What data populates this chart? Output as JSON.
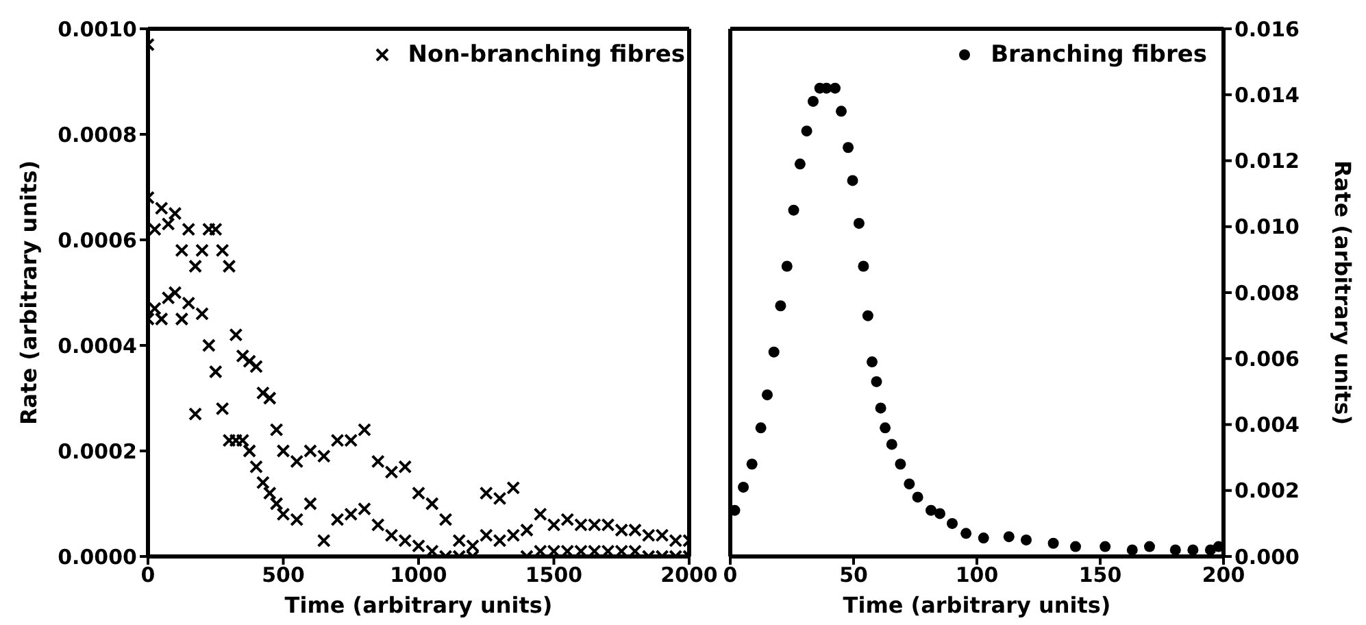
{
  "chart_data": [
    {
      "type": "scatter",
      "xlabel": "Time (arbitrary units)",
      "ylabel": "Rate (arbitrary units)",
      "xlim": [
        0,
        2000
      ],
      "xticks": [
        0,
        500,
        1000,
        1500,
        2000
      ],
      "ylim": [
        0,
        0.001
      ],
      "yticks": [
        {
          "value": 0,
          "label": "0.0000"
        },
        {
          "value": 0.0002,
          "label": "0.0002"
        },
        {
          "value": 0.0004,
          "label": "0.0004"
        },
        {
          "value": 0.0006,
          "label": "0.0006"
        },
        {
          "value": 0.0008,
          "label": "0.0008"
        },
        {
          "value": 0.001,
          "label": "0.0010"
        }
      ],
      "marker": "cross",
      "legend": "top right",
      "grid": false,
      "series": [
        {
          "name": "Non-branching fibres",
          "color": "#000000",
          "x": [
            0,
            0,
            0,
            25,
            25,
            50,
            50,
            75,
            75,
            100,
            100,
            125,
            125,
            150,
            150,
            175,
            175,
            200,
            200,
            225,
            225,
            250,
            250,
            275,
            275,
            300,
            300,
            325,
            325,
            350,
            350,
            375,
            375,
            400,
            400,
            425,
            425,
            450,
            450,
            475,
            475,
            500,
            500,
            550,
            550,
            600,
            600,
            650,
            650,
            700,
            700,
            750,
            750,
            800,
            800,
            850,
            850,
            900,
            900,
            950,
            950,
            1000,
            1000,
            1050,
            1050,
            1100,
            1100,
            1150,
            1150,
            1200,
            1200,
            1250,
            1250,
            1300,
            1300,
            1350,
            1350,
            1400,
            1400,
            1450,
            1450,
            1500,
            1500,
            1550,
            1550,
            1600,
            1600,
            1650,
            1650,
            1700,
            1700,
            1750,
            1750,
            1800,
            1800,
            1850,
            1850,
            1900,
            1900,
            1950,
            1950,
            2000,
            2000
          ],
          "values": [
            0.00097,
            0.00068,
            0.00045,
            0.00062,
            0.00047,
            0.00066,
            0.00045,
            0.00063,
            0.00049,
            0.00065,
            0.0005,
            0.00058,
            0.00045,
            0.00062,
            0.00048,
            0.00055,
            0.00027,
            0.00058,
            0.00046,
            0.00062,
            0.0004,
            0.00062,
            0.00035,
            0.00058,
            0.00028,
            0.00055,
            0.00022,
            0.00042,
            0.00022,
            0.00038,
            0.00022,
            0.00037,
            0.0002,
            0.00036,
            0.00017,
            0.00031,
            0.00014,
            0.0003,
            0.00012,
            0.00024,
            0.0001,
            0.0002,
            8e-05,
            0.00018,
            7e-05,
            0.0002,
            0.0001,
            0.00019,
            3e-05,
            0.00022,
            7e-05,
            0.00022,
            8e-05,
            0.00024,
            9e-05,
            0.00018,
            6e-05,
            0.00016,
            4e-05,
            0.00017,
            3e-05,
            0.00012,
            2e-05,
            0.0001,
            1e-05,
            7e-05,
            0.0,
            3e-05,
            0.0,
            2e-05,
            0.0,
            0.00012,
            4e-05,
            0.00011,
            3e-05,
            0.00013,
            4e-05,
            5e-05,
            0.0,
            8e-05,
            1e-05,
            6e-05,
            1e-05,
            7e-05,
            1e-05,
            6e-05,
            1e-05,
            6e-05,
            1e-05,
            6e-05,
            1e-05,
            5e-05,
            1e-05,
            5e-05,
            1e-05,
            4e-05,
            0.0,
            4e-05,
            0.0,
            3e-05,
            0.0,
            3e-05,
            0.0
          ]
        }
      ]
    },
    {
      "type": "scatter",
      "xlabel": "Time (arbitrary units)",
      "y2label": "Rate (arbitrary units)",
      "xlim": [
        0,
        200
      ],
      "xticks": [
        0,
        50,
        100,
        150,
        200
      ],
      "y2lim": [
        0,
        0.016
      ],
      "y2ticks": [
        {
          "value": 0,
          "label": "0.000"
        },
        {
          "value": 0.002,
          "label": "0.002"
        },
        {
          "value": 0.004,
          "label": "0.004"
        },
        {
          "value": 0.006,
          "label": "0.006"
        },
        {
          "value": 0.008,
          "label": "0.008"
        },
        {
          "value": 0.01,
          "label": "0.010"
        },
        {
          "value": 0.012,
          "label": "0.012"
        },
        {
          "value": 0.014,
          "label": "0.014"
        },
        {
          "value": 0.016,
          "label": "0.016"
        }
      ],
      "marker": "circle",
      "legend": "top right",
      "grid": false,
      "series": [
        {
          "name": "Branching fibres",
          "color": "#000000",
          "axis": "y2",
          "x": [
            1.8,
            5.3,
            8.8,
            12.4,
            15,
            17.7,
            20.4,
            23,
            25.7,
            28.3,
            31,
            33.6,
            36.3,
            39,
            42.5,
            45,
            47.8,
            49.6,
            52.2,
            54,
            55.8,
            57.5,
            59.3,
            61,
            62.8,
            65.5,
            69,
            72.6,
            76,
            81.4,
            85,
            90,
            95.6,
            102.7,
            113,
            120,
            131,
            140,
            152,
            163,
            170,
            180.5,
            187.6,
            194.7,
            198
          ],
          "values": [
            0.0014,
            0.0021,
            0.0028,
            0.0039,
            0.0049,
            0.0062,
            0.0076,
            0.0088,
            0.0105,
            0.0119,
            0.0129,
            0.0138,
            0.0142,
            0.0142,
            0.0142,
            0.0135,
            0.0124,
            0.0114,
            0.0101,
            0.0088,
            0.0073,
            0.0059,
            0.0053,
            0.0045,
            0.0039,
            0.0034,
            0.0028,
            0.0022,
            0.0018,
            0.0014,
            0.0013,
            0.001,
            0.0007,
            0.00056,
            0.0006,
            0.0005,
            0.0004,
            0.0003,
            0.0003,
            0.0002,
            0.0003,
            0.0002,
            0.0002,
            0.0002,
            0.0003
          ]
        }
      ]
    }
  ]
}
